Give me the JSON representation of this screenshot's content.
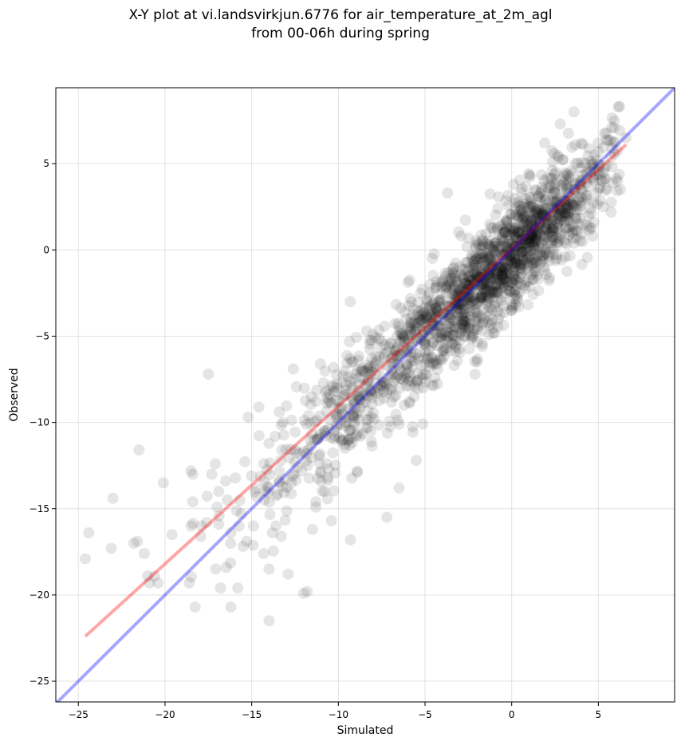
{
  "chart_data": {
    "type": "scatter",
    "title": "X-Y plot at vi.landsvirkjun.6776 for air_temperature_at_2m_agl",
    "subtitle": "from 00-06h during spring",
    "xlabel": "Simulated",
    "ylabel": "Observed",
    "xlim": [
      -26.3,
      9.4
    ],
    "ylim": [
      -26.2,
      9.4
    ],
    "xticks": [
      -25,
      -20,
      -15,
      -10,
      -5,
      0,
      5
    ],
    "yticks": [
      -25,
      -20,
      -15,
      -10,
      -5,
      0,
      5
    ],
    "xtick_labels": [
      "−25",
      "−20",
      "−15",
      "−10",
      "−5",
      "0",
      "5"
    ],
    "ytick_labels": [
      "−25",
      "−20",
      "−15",
      "−10",
      "−5",
      "0",
      "5"
    ],
    "grid": true,
    "point_color": "#000000",
    "point_opacity": 0.1,
    "point_count": 1800,
    "series": [
      {
        "kind": "scatter",
        "x": [
          -24.6,
          -24.4,
          -23.1,
          -23.0,
          -21.8,
          -21.6,
          -21.5,
          -21.2,
          -21.0,
          -20.9,
          -20.6,
          -20.4,
          -20.1,
          -19.6,
          -18.6,
          -18.5,
          -18.4,
          -18.5,
          -18.4,
          -17.9,
          -17.6,
          -17.5,
          -17.3,
          -17.1,
          -17.0,
          -16.9,
          -16.8,
          -16.9,
          -16.5,
          -16.4,
          -16.2,
          -16.2,
          -15.8,
          -15.6,
          -15.3,
          -15.2,
          -15.0,
          -14.9,
          -14.7,
          -14.3,
          -14.1,
          -14.0,
          -14.0,
          -13.8,
          -13.6,
          -13.3,
          -13.2,
          -12.9,
          -12.6,
          -12.0,
          -11.8,
          -11.5,
          -11.3,
          -11.0,
          -10.8,
          -10.6,
          -10.4,
          -10.2,
          -9.7,
          -9.3,
          -8.9,
          -8.4,
          -7.2,
          -6.8,
          -6.5,
          -5.5,
          -5.1,
          -4.4,
          -3.7,
          -2.0,
          -1.3,
          -0.8,
          0.4,
          1.9,
          2.8,
          3.6,
          4.8,
          5.1,
          5.3,
          5.8,
          6.1,
          6.6,
          3.5,
          3.6,
          3.9
        ],
        "y": [
          -17.9,
          -16.4,
          -17.3,
          -14.4,
          -17.0,
          -16.9,
          -11.6,
          -17.6,
          -18.9,
          -19.3,
          -18.9,
          -19.3,
          -13.5,
          -16.5,
          -19.3,
          -16.0,
          -14.6,
          -12.8,
          -13.0,
          -16.0,
          -15.8,
          -7.2,
          -13.0,
          -12.4,
          -14.9,
          -15.9,
          -19.6,
          -14.0,
          -13.4,
          -14.5,
          -20.7,
          -16.4,
          -19.6,
          -15.3,
          -16.9,
          -9.7,
          -13.1,
          -16.0,
          -14.3,
          -17.6,
          -13.7,
          -18.5,
          -21.5,
          -16.4,
          -16.0,
          -16.6,
          -10.0,
          -18.8,
          -6.9,
          -19.9,
          -19.8,
          -16.2,
          -14.6,
          -13.4,
          -14.0,
          -13.2,
          -15.7,
          -10.5,
          -11.0,
          -16.8,
          -12.9,
          -10.3,
          -15.5,
          -7.6,
          -13.8,
          -12.2,
          -8.0,
          -3.8,
          3.3,
          -3.0,
          -4.9,
          2.4,
          -3.3,
          6.2,
          7.3,
          8.0,
          5.5,
          4.9,
          2.5,
          5.9,
          4.0,
          6.5,
          1.0,
          0.4,
          1.5
        ],
        "density_model": {
          "slope": 0.92,
          "intercept": -0.3,
          "spread": 1.55,
          "x_core_range": [
            -12.5,
            5.5
          ]
        }
      },
      {
        "kind": "line",
        "label": "",
        "color": "#ff0000",
        "opacity": 0.35,
        "x": [
          -24.6,
          6.6
        ],
        "y": [
          -22.4,
          6.1
        ]
      },
      {
        "kind": "line",
        "label": "",
        "color": "#0000ff",
        "opacity": 0.35,
        "x": [
          -26.3,
          9.4
        ],
        "y": [
          -26.3,
          9.4
        ]
      }
    ]
  }
}
